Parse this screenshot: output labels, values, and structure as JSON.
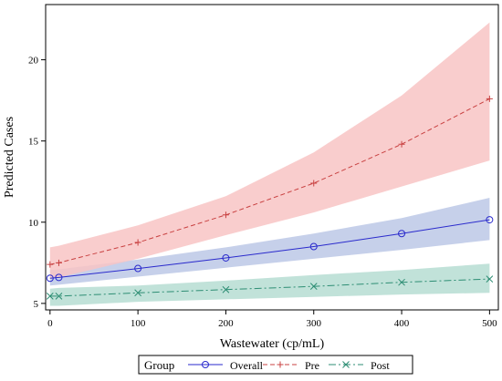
{
  "chart_data": {
    "type": "line",
    "xlabel": "Wastewater (cp/mL)",
    "ylabel": "Predicted Cases",
    "xlim": [
      -5,
      510
    ],
    "ylim": [
      4.6,
      23.4
    ],
    "x_ticks": [
      0,
      100,
      200,
      300,
      400,
      500
    ],
    "y_ticks": [
      5,
      10,
      15,
      20
    ],
    "grid": false,
    "legend_placement": "bottom-center",
    "legend_title": "Group",
    "series": [
      {
        "name": "Overall",
        "marker": "circle",
        "line_style": "solid",
        "color": "#2a2acc",
        "band_color": "#bcc8e6",
        "x": [
          0,
          10,
          100,
          200,
          300,
          400,
          500
        ],
        "values": [
          6.55,
          6.6,
          7.15,
          7.8,
          8.5,
          9.3,
          10.15
        ],
        "lower": [
          6.1,
          6.15,
          6.65,
          7.2,
          7.75,
          8.3,
          8.9
        ],
        "upper": [
          7.05,
          7.1,
          7.7,
          8.45,
          9.3,
          10.25,
          11.5
        ]
      },
      {
        "name": "Pre",
        "marker": "plus",
        "line_style": "dashed",
        "color": "#c84040",
        "band_color": "#f8c4c4",
        "x": [
          0,
          10,
          100,
          200,
          300,
          400,
          500
        ],
        "values": [
          7.4,
          7.5,
          8.75,
          10.45,
          12.4,
          14.8,
          17.6
        ],
        "lower": [
          6.5,
          6.6,
          7.75,
          9.2,
          10.6,
          12.2,
          13.8
        ],
        "upper": [
          8.45,
          8.55,
          9.8,
          11.6,
          14.3,
          17.8,
          22.3
        ]
      },
      {
        "name": "Post",
        "marker": "x",
        "line_style": "dashdot",
        "color": "#2e8e74",
        "band_color": "#b6ddd2",
        "x": [
          0,
          10,
          100,
          200,
          300,
          400,
          500
        ],
        "values": [
          5.45,
          5.45,
          5.65,
          5.85,
          6.05,
          6.3,
          6.5
        ],
        "lower": [
          4.85,
          4.85,
          5.1,
          5.25,
          5.4,
          5.55,
          5.65
        ],
        "upper": [
          5.9,
          5.95,
          6.1,
          6.4,
          6.75,
          7.05,
          7.45
        ]
      }
    ]
  }
}
